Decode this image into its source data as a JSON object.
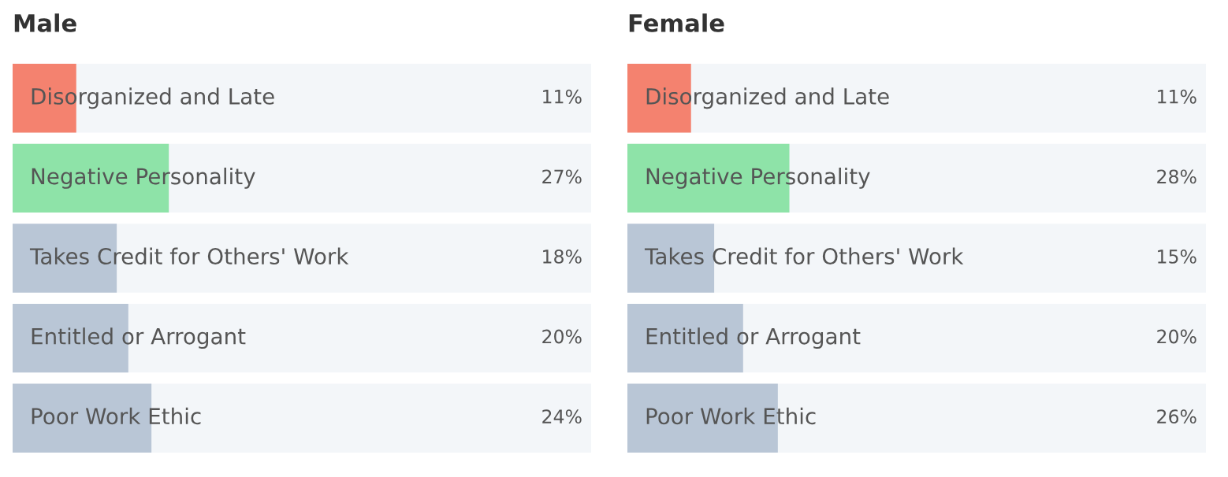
{
  "chart_data": [
    {
      "type": "bar",
      "orientation": "horizontal",
      "title": "Male",
      "categories": [
        "Disorganized and Late",
        "Negative Personality",
        "Takes Credit for Others' Work",
        "Entitled or Arrogant",
        "Poor Work Ethic"
      ],
      "values": [
        11,
        27,
        18,
        20,
        24
      ],
      "colors": [
        "#f4826f",
        "#8ee3a8",
        "#b9c6d6",
        "#b9c6d6",
        "#b9c6d6"
      ],
      "xlim": [
        0,
        100
      ],
      "value_labels": [
        "11%",
        "27%",
        "18%",
        "20%",
        "24%"
      ]
    },
    {
      "type": "bar",
      "orientation": "horizontal",
      "title": "Female",
      "categories": [
        "Disorganized and Late",
        "Negative Personality",
        "Takes Credit for Others' Work",
        "Entitled or Arrogant",
        "Poor Work Ethic"
      ],
      "values": [
        11,
        28,
        15,
        20,
        26
      ],
      "colors": [
        "#f4826f",
        "#8ee3a8",
        "#b9c6d6",
        "#b9c6d6",
        "#b9c6d6"
      ],
      "xlim": [
        0,
        100
      ],
      "value_labels": [
        "11%",
        "28%",
        "15%",
        "20%",
        "26%"
      ]
    }
  ]
}
